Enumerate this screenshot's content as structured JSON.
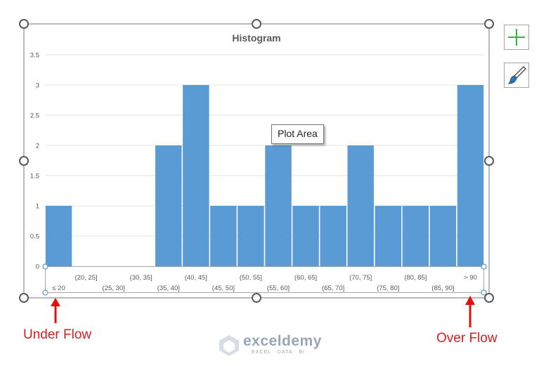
{
  "chart_data": {
    "type": "bar",
    "title": "Histogram",
    "xlabel": "",
    "ylabel": "",
    "categories": [
      "≤ 20",
      "(20, 25]",
      "(25, 30]",
      "(30, 35]",
      "(35, 40]",
      "(40, 45]",
      "(45, 50]",
      "(50, 55]",
      "(55, 60]",
      "(60, 65]",
      "(65, 70]",
      "(70, 75]",
      "(75, 80]",
      "(80, 85]",
      "(85, 90]",
      "> 90"
    ],
    "values": [
      1,
      0,
      0,
      0,
      2,
      3,
      1,
      1,
      2,
      1,
      1,
      2,
      1,
      1,
      1,
      3
    ],
    "ylim": [
      0,
      3.5
    ],
    "yticks": [
      "0",
      "0.5",
      "1",
      "1.5",
      "2",
      "2.5",
      "3",
      "3.5"
    ],
    "grid": true,
    "bar_color": "#5b9bd5",
    "legend": "none"
  },
  "tooltip": "Plot Area",
  "annotations": {
    "under_flow": "Under Flow",
    "over_flow": "Over Flow"
  },
  "annotation_color": "#d32020",
  "watermark": {
    "name": "exceldemy",
    "tagline": "EXCEL · DATA · BI"
  },
  "icons": {
    "chart_elements": "plus-icon",
    "chart_styles": "paintbrush-icon"
  }
}
